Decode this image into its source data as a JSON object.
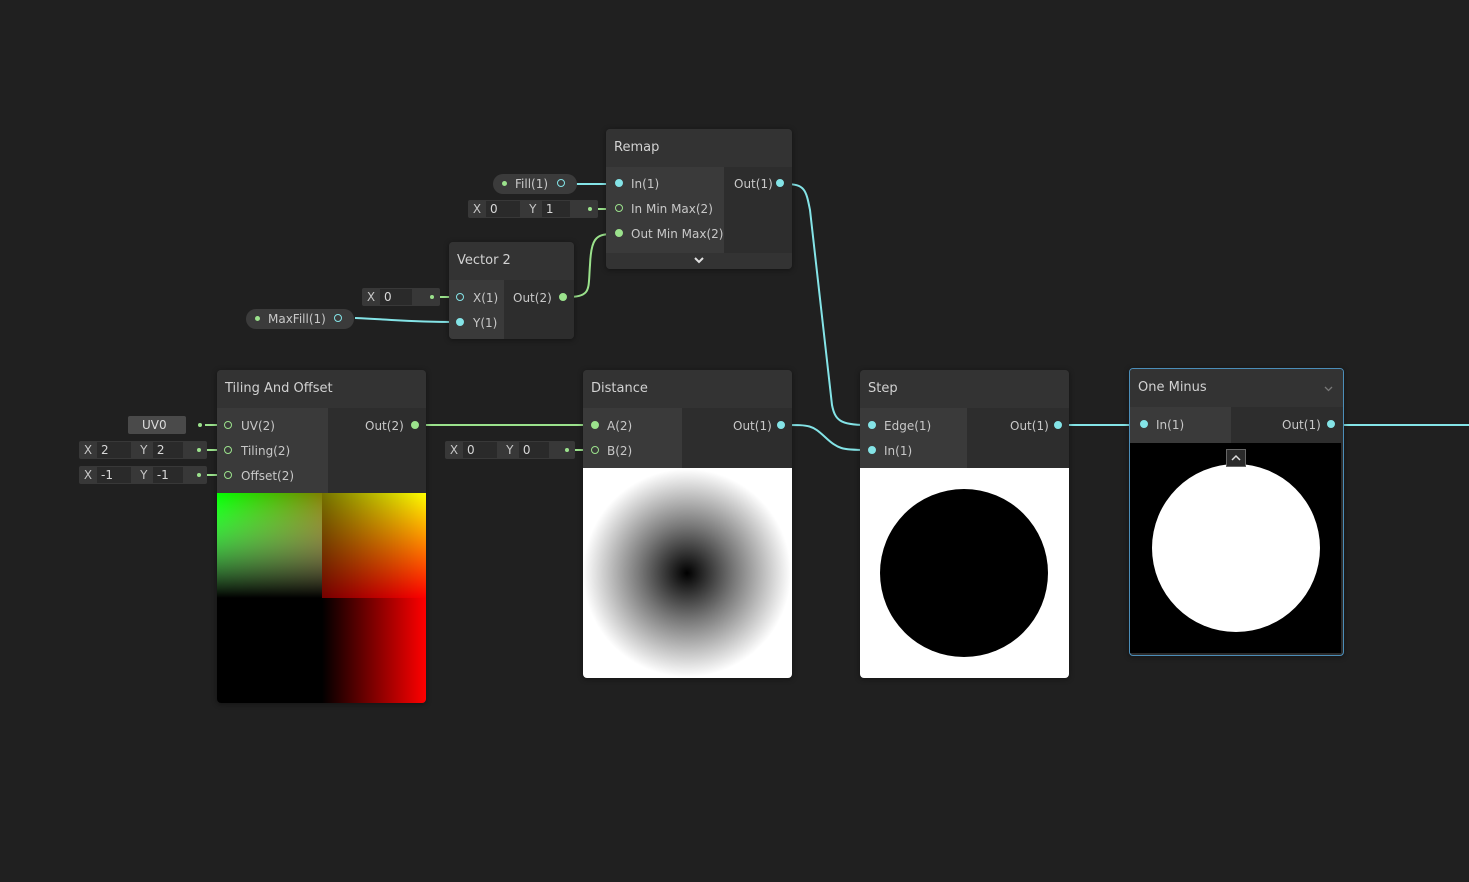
{
  "nodes": {
    "remap": {
      "title": "Remap",
      "inputs": [
        "In(1)",
        "In Min Max(2)",
        "Out Min Max(2)"
      ],
      "output": "Out(1)",
      "in_min_max": {
        "x": "0",
        "y": "1"
      }
    },
    "vector2": {
      "title": "Vector 2",
      "inputs": [
        "X(1)",
        "Y(1)"
      ],
      "output": "Out(2)",
      "x_value": "0"
    },
    "tiling_offset": {
      "title": "Tiling And Offset",
      "inputs": [
        "UV(2)",
        "Tiling(2)",
        "Offset(2)"
      ],
      "output": "Out(2)",
      "uv_channel": "UV0",
      "tiling": {
        "x": "2",
        "y": "2"
      },
      "offset": {
        "x": "-1",
        "y": "-1"
      }
    },
    "distance": {
      "title": "Distance",
      "inputs": [
        "A(2)",
        "B(2)"
      ],
      "output": "Out(1)",
      "b_value": {
        "x": "0",
        "y": "0"
      }
    },
    "step": {
      "title": "Step",
      "inputs": [
        "Edge(1)",
        "In(1)"
      ],
      "output": "Out(1)"
    },
    "one_minus": {
      "title": "One Minus",
      "inputs": [
        "In(1)"
      ],
      "output": "Out(1)"
    }
  },
  "properties": {
    "fill": "Fill(1)",
    "maxfill": "MaxFill(1)"
  },
  "labels": {
    "x": "X",
    "y": "Y"
  },
  "icons": {
    "expand": "chevron-down-icon",
    "collapse": "chevron-up-icon",
    "dropdown": "caret-down-icon"
  },
  "colors": {
    "background": "#202020",
    "float_wire": "#84e4e7",
    "vector2_wire": "#9be28c",
    "selection": "#4b8db8"
  }
}
